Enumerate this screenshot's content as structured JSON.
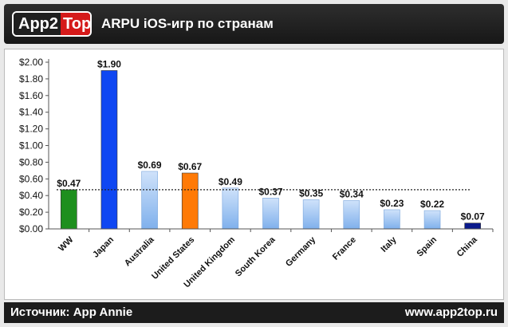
{
  "header": {
    "logo_left": "App2",
    "logo_right": "Top",
    "title": "ARPU iOS-игр по странам"
  },
  "footer": {
    "source": "Источник: App Annie",
    "site": "www.app2top.ru"
  },
  "colors": {
    "green": "#1e8f1e",
    "blue": "#0f47f2",
    "orange": "#ff7a06",
    "light_blue": "#8cbaef",
    "navy": "#0b1a8c"
  },
  "chart_data": {
    "type": "bar",
    "title": "",
    "xlabel": "",
    "ylabel": "",
    "ylim": [
      0,
      2.0
    ],
    "yticks": [
      "$0.00",
      "$0.20",
      "$0.40",
      "$0.60",
      "$0.80",
      "$1.00",
      "$1.20",
      "$1.40",
      "$1.60",
      "$1.80",
      "$2.00"
    ],
    "categories": [
      "WW",
      "Japan",
      "Australia",
      "United States",
      "United Kingdom",
      "South Korea",
      "Germany",
      "France",
      "Italy",
      "Spain",
      "China"
    ],
    "values": [
      0.47,
      1.9,
      0.69,
      0.67,
      0.49,
      0.37,
      0.35,
      0.34,
      0.23,
      0.22,
      0.07
    ],
    "value_labels": [
      "$0.47",
      "$1.90",
      "$0.69",
      "$0.67",
      "$0.49",
      "$0.37",
      "$0.35",
      "$0.34",
      "$0.23",
      "$0.22",
      "$0.07"
    ],
    "bar_colors": [
      "green",
      "blue",
      "light_blue",
      "orange",
      "light_blue",
      "light_blue",
      "light_blue",
      "light_blue",
      "light_blue",
      "light_blue",
      "navy"
    ],
    "reference_line": 0.47,
    "grid": false
  }
}
